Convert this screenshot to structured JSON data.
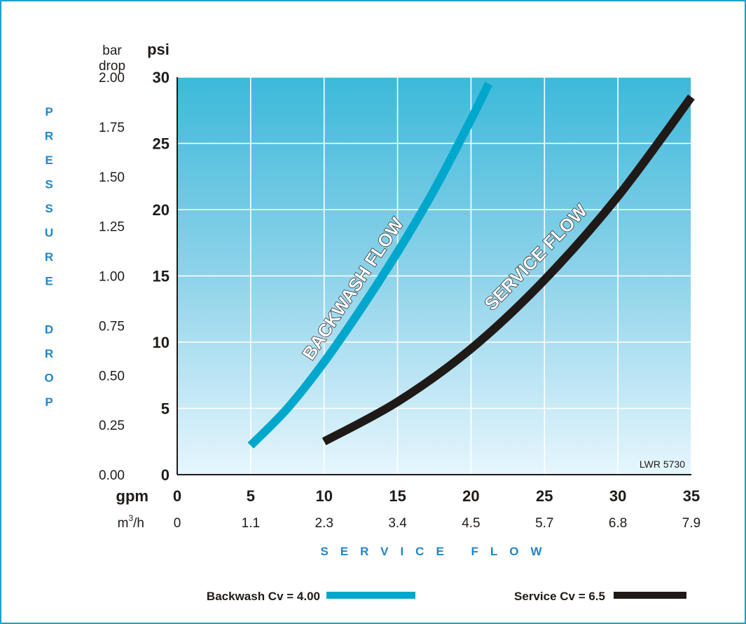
{
  "chart_data": {
    "type": "line",
    "x_primary_label": "gpm",
    "x_secondary_label_base": "m",
    "x_secondary_label_sup": "3",
    "x_secondary_label_tail": "/h",
    "x_ticks": [
      0,
      5,
      10,
      15,
      20,
      25,
      30,
      35
    ],
    "x_secondary_ticks": [
      "0",
      "1.1",
      "2.3",
      "3.4",
      "4.5",
      "5.7",
      "6.8",
      "7.9"
    ],
    "xlim": [
      0,
      35
    ],
    "y_primary_label": "psi",
    "y_secondary_label_line1": "bar",
    "y_secondary_label_line2": "drop",
    "y_ticks": [
      0,
      5,
      10,
      15,
      20,
      25,
      30
    ],
    "y_secondary_ticks": [
      "0.00",
      "0.25",
      "0.50",
      "0.75",
      "1.00",
      "1.25",
      "1.50",
      "1.75",
      "2.00"
    ],
    "ylim": [
      0,
      30
    ],
    "y_axis_title": "PRESSURE DROP",
    "x_axis_title": "SERVICE FLOW",
    "grid": true,
    "reference_code": "LWR 5730",
    "series": [
      {
        "name": "Backwash Cv = 4.00",
        "curve_label": "BACKWASH FLOW",
        "color": "#00a7cc",
        "x": [
          5,
          7.5,
          10,
          12.5,
          15,
          17.5,
          20,
          21.2
        ],
        "y": [
          2.2,
          5.0,
          8.5,
          12.5,
          16.8,
          21.5,
          26.8,
          29.5
        ]
      },
      {
        "name": "Service Cv = 6.5",
        "curve_label": "SERVICE FLOW",
        "color": "#1f1a17",
        "x": [
          10,
          15,
          20,
          25,
          30,
          35
        ],
        "y": [
          2.5,
          5.5,
          9.5,
          14.7,
          21.0,
          28.5
        ]
      }
    ]
  }
}
